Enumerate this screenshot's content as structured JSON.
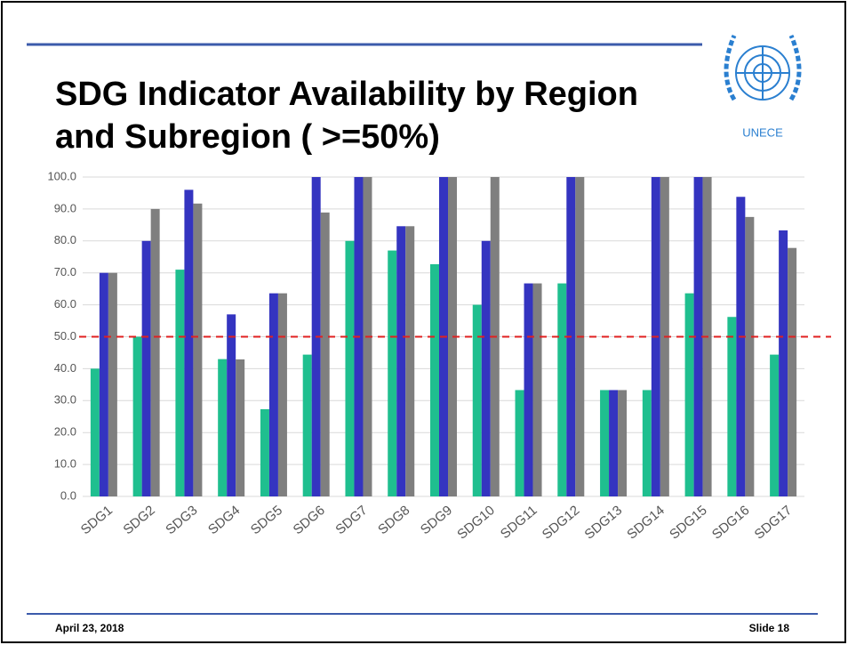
{
  "chart_data": {
    "type": "bar",
    "title_lines": [
      "SDG Indicator Availability by Region",
      "and Subregion ( >=50%)"
    ],
    "categories": [
      "SDG1",
      "SDG2",
      "SDG3",
      "SDG4",
      "SDG5",
      "SDG6",
      "SDG7",
      "SDG8",
      "SDG9",
      "SDG10",
      "SDG11",
      "SDG12",
      "SDG13",
      "SDG14",
      "SDG15",
      "SDG16",
      "SDG17"
    ],
    "series": [
      {
        "color": "#1fbf8f",
        "values": [
          40,
          50,
          71,
          43,
          27.3,
          44.4,
          80,
          77,
          72.7,
          60,
          33.3,
          66.7,
          33.3,
          33.3,
          63.6,
          56.2,
          44.4
        ]
      },
      {
        "color": "#3434c0",
        "values": [
          70,
          80,
          96,
          57,
          63.6,
          100,
          100,
          84.6,
          100,
          80,
          66.7,
          100,
          33.3,
          100,
          100,
          93.8,
          83.3
        ]
      },
      {
        "color": "#7f7f7f",
        "values": [
          70,
          90,
          91.7,
          42.9,
          63.6,
          88.9,
          100,
          84.6,
          100,
          100,
          66.7,
          100,
          33.3,
          100,
          100,
          87.5,
          77.8
        ]
      }
    ],
    "ylim": [
      0,
      100
    ],
    "yticks": [
      {
        "value": 0,
        "label": "0.0"
      },
      {
        "value": 10,
        "label": "10.0"
      },
      {
        "value": 20,
        "label": "20.0"
      },
      {
        "value": 30,
        "label": "30.0"
      },
      {
        "value": 40,
        "label": "40.0"
      },
      {
        "value": 50,
        "label": "50.0"
      },
      {
        "value": 60,
        "label": "60.0"
      },
      {
        "value": 70,
        "label": "70.0"
      },
      {
        "value": 80,
        "label": "80.0"
      },
      {
        "value": 90,
        "label": "90.0"
      },
      {
        "value": 100,
        "label": "100.0"
      }
    ],
    "grid": true,
    "reference_line": {
      "value": 50,
      "color": "#e02020",
      "dashed": true
    }
  },
  "logo": {
    "label": "UNECE"
  },
  "footer": {
    "date": "April 23, 2018",
    "slide": "Slide 18"
  }
}
